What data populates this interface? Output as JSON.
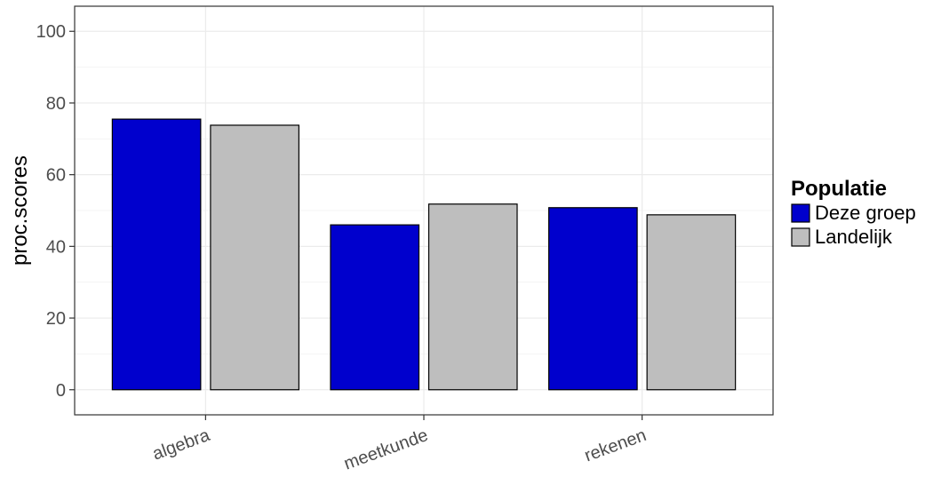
{
  "chart_data": {
    "type": "bar",
    "title": "",
    "xlabel": "",
    "ylabel": "proc.scores",
    "categories": [
      "algebra",
      "meetkunde",
      "rekenen"
    ],
    "series": [
      {
        "name": "Deze groep",
        "color": "#0000CD",
        "values": [
          75.5,
          46,
          50.8
        ]
      },
      {
        "name": "Landelijk",
        "color": "#BEBEBE",
        "values": [
          73.8,
          51.8,
          48.8
        ]
      }
    ],
    "ylim": [
      -7,
      107
    ],
    "yticks": [
      0,
      20,
      40,
      60,
      80,
      100
    ],
    "grid": true,
    "legend": {
      "title": "Populatie",
      "position": "right"
    }
  }
}
